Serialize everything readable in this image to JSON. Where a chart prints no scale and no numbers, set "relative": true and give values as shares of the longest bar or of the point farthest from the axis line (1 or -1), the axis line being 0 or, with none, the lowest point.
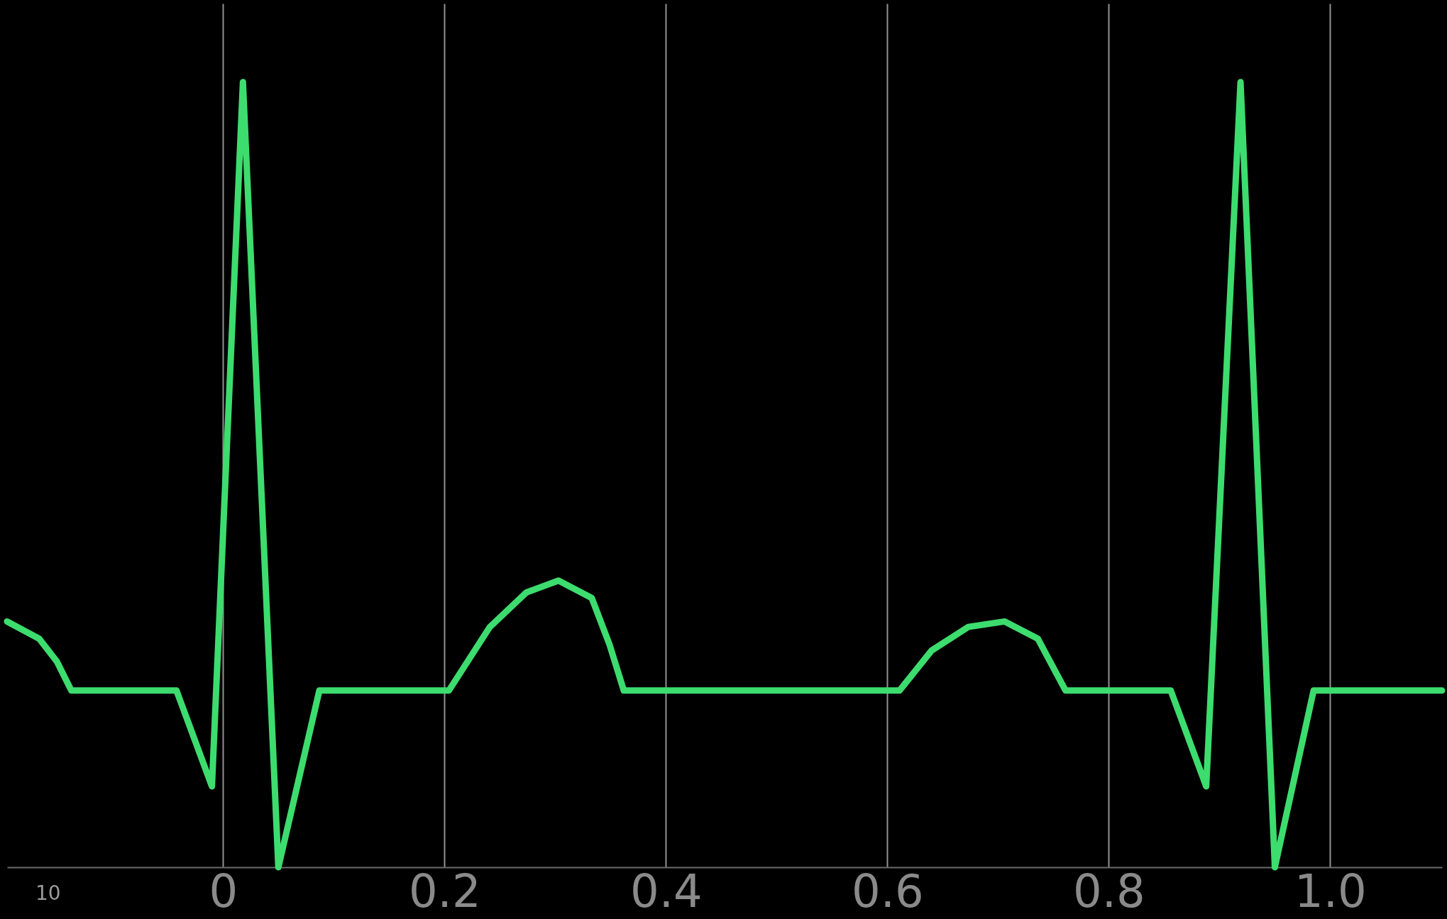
{
  "chart_data": {
    "type": "line",
    "relative": true,
    "color": "#3ddc6e",
    "x": [
      -0.195,
      -0.166,
      -0.15,
      -0.137,
      -0.042,
      -0.01,
      0.018,
      0.05,
      0.087,
      0.204,
      0.241,
      0.274,
      0.303,
      0.333,
      0.349,
      0.362,
      0.611,
      0.64,
      0.673,
      0.706,
      0.736,
      0.761,
      0.856,
      0.888,
      0.919,
      0.95,
      0.985,
      1.101
    ],
    "values": [
      0.313,
      0.291,
      0.262,
      0.225,
      0.225,
      0.103,
      1.0,
      0.0,
      0.225,
      0.225,
      0.306,
      0.35,
      0.365,
      0.343,
      0.284,
      0.225,
      0.225,
      0.276,
      0.306,
      0.313,
      0.291,
      0.225,
      0.225,
      0.103,
      1.0,
      0.0,
      0.225,
      0.225
    ],
    "xlim": [
      -0.195,
      1.101
    ],
    "xticks": [
      0,
      0.2,
      0.4,
      0.6,
      0.8,
      {
        "value": 1,
        "label": "1.0"
      }
    ],
    "grid": "x",
    "marker": "none",
    "line_style": "solid",
    "annotations": [
      "10"
    ]
  }
}
